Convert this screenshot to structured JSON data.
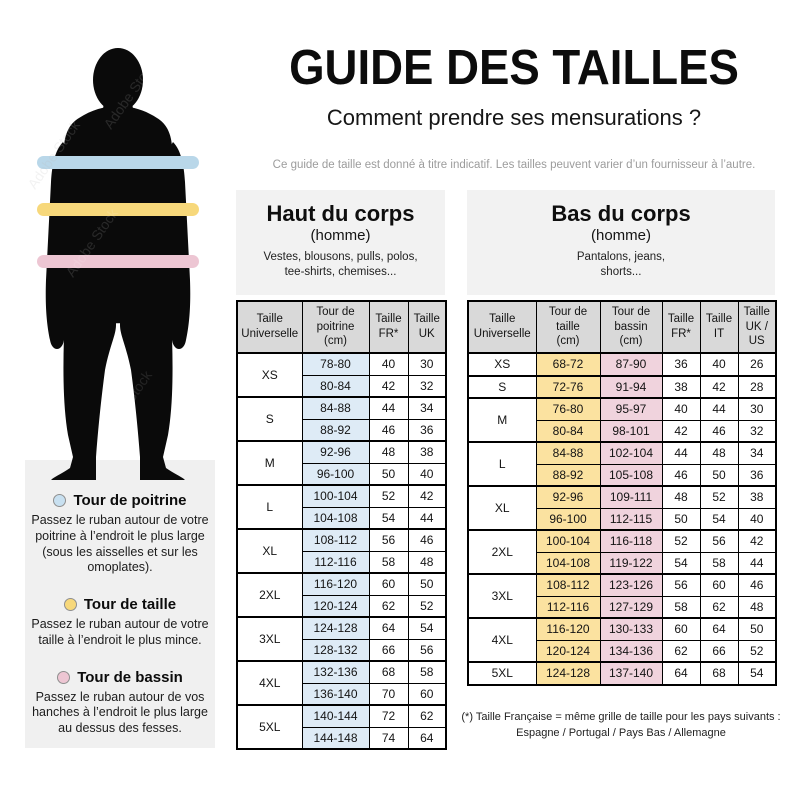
{
  "page": {
    "background": "#ffffff"
  },
  "header": {
    "title": "GUIDE DES TAILLES",
    "subtitle": "Comment prendre ses mensurations ?",
    "note": "Ce guide de taille est donné à titre indicatif. Les tailles peuvent varier d’un fournisseur à l’autre."
  },
  "figure": {
    "watermark": "Adobe Stock",
    "silhouette_color": "#0a0a0a",
    "bands": [
      {
        "name": "tour-de-poitrine",
        "color": "#b9d7e9"
      },
      {
        "name": "tour-de-taille",
        "color": "#f7d87b"
      },
      {
        "name": "tour-de-bassin",
        "color": "#edc6d3"
      }
    ]
  },
  "legend": {
    "items": [
      {
        "title": "Tour de poitrine",
        "color": "#c8e0f0",
        "text": "Passez le ruban autour de votre\npoitrine à l’endroit le plus large\n(sous les aisselles et sur les\nomoplates)."
      },
      {
        "title": "Tour de taille",
        "color": "#f7d87b",
        "text": "Passez le ruban autour de votre\ntaille à l’endroit le plus mince."
      },
      {
        "title": "Tour de bassin",
        "color": "#edc6d3",
        "text": "Passez le ruban autour de vos\nhanches à l’endroit le plus large\nau dessus des fesses."
      }
    ]
  },
  "tables": {
    "haut": {
      "title": "Haut du corps",
      "subtitle": "(homme)",
      "description": "Vestes, blousons, pulls, polos,\ntee-shirts, chemises...",
      "columns": [
        "Taille\nUniverselle",
        "Tour de\npoitrine\n(cm)",
        "Taille\nFR*",
        "Taille\nUK"
      ],
      "header_fill": "#d9d9d9",
      "column_fills": [
        "#deebf6",
        null,
        null
      ],
      "groups": [
        {
          "size": "XS",
          "rows": [
            [
              "78-80",
              "40",
              "30"
            ],
            [
              "80-84",
              "42",
              "32"
            ]
          ]
        },
        {
          "size": "S",
          "rows": [
            [
              "84-88",
              "44",
              "34"
            ],
            [
              "88-92",
              "46",
              "36"
            ]
          ]
        },
        {
          "size": "M",
          "rows": [
            [
              "92-96",
              "48",
              "38"
            ],
            [
              "96-100",
              "50",
              "40"
            ]
          ]
        },
        {
          "size": "L",
          "rows": [
            [
              "100-104",
              "52",
              "42"
            ],
            [
              "104-108",
              "54",
              "44"
            ]
          ]
        },
        {
          "size": "XL",
          "rows": [
            [
              "108-112",
              "56",
              "46"
            ],
            [
              "112-116",
              "58",
              "48"
            ]
          ]
        },
        {
          "size": "2XL",
          "rows": [
            [
              "116-120",
              "60",
              "50"
            ],
            [
              "120-124",
              "62",
              "52"
            ]
          ]
        },
        {
          "size": "3XL",
          "rows": [
            [
              "124-128",
              "64",
              "54"
            ],
            [
              "128-132",
              "66",
              "56"
            ]
          ]
        },
        {
          "size": "4XL",
          "rows": [
            [
              "132-136",
              "68",
              "58"
            ],
            [
              "136-140",
              "70",
              "60"
            ]
          ]
        },
        {
          "size": "5XL",
          "rows": [
            [
              "140-144",
              "72",
              "62"
            ],
            [
              "144-148",
              "74",
              "64"
            ]
          ]
        }
      ]
    },
    "bas": {
      "title": "Bas du corps",
      "subtitle": "(homme)",
      "description": "Pantalons, jeans,\nshorts...",
      "columns": [
        "Taille\nUniverselle",
        "Tour de\ntaille\n(cm)",
        "Tour de\nbassin\n(cm)",
        "Taille\nFR*",
        "Taille\nIT",
        "Taille\nUK /\nUS"
      ],
      "header_fill": "#d9d9d9",
      "column_fills": [
        "#fbe2a0",
        "#f0d3dd",
        null,
        null,
        null
      ],
      "groups": [
        {
          "size": "XS",
          "rows": [
            [
              "68-72",
              "87-90",
              "36",
              "40",
              "26"
            ]
          ]
        },
        {
          "size": "S",
          "rows": [
            [
              "72-76",
              "91-94",
              "38",
              "42",
              "28"
            ]
          ]
        },
        {
          "size": "M",
          "rows": [
            [
              "76-80",
              "95-97",
              "40",
              "44",
              "30"
            ],
            [
              "80-84",
              "98-101",
              "42",
              "46",
              "32"
            ]
          ]
        },
        {
          "size": "L",
          "rows": [
            [
              "84-88",
              "102-104",
              "44",
              "48",
              "34"
            ],
            [
              "88-92",
              "105-108",
              "46",
              "50",
              "36"
            ]
          ]
        },
        {
          "size": "XL",
          "rows": [
            [
              "92-96",
              "109-111",
              "48",
              "52",
              "38"
            ],
            [
              "96-100",
              "112-115",
              "50",
              "54",
              "40"
            ]
          ]
        },
        {
          "size": "2XL",
          "rows": [
            [
              "100-104",
              "116-118",
              "52",
              "56",
              "42"
            ],
            [
              "104-108",
              "119-122",
              "54",
              "58",
              "44"
            ]
          ]
        },
        {
          "size": "3XL",
          "rows": [
            [
              "108-112",
              "123-126",
              "56",
              "60",
              "46"
            ],
            [
              "112-116",
              "127-129",
              "58",
              "62",
              "48"
            ]
          ]
        },
        {
          "size": "4XL",
          "rows": [
            [
              "116-120",
              "130-133",
              "60",
              "64",
              "50"
            ],
            [
              "120-124",
              "134-136",
              "62",
              "66",
              "52"
            ]
          ]
        },
        {
          "size": "5XL",
          "rows": [
            [
              "124-128",
              "137-140",
              "64",
              "68",
              "54"
            ]
          ]
        }
      ],
      "footnote_line1": "(*) Taille Française = même grille de taille pour les pays suivants :",
      "footnote_line2": "Espagne / Portugal / Pays Bas / Allemagne"
    }
  }
}
